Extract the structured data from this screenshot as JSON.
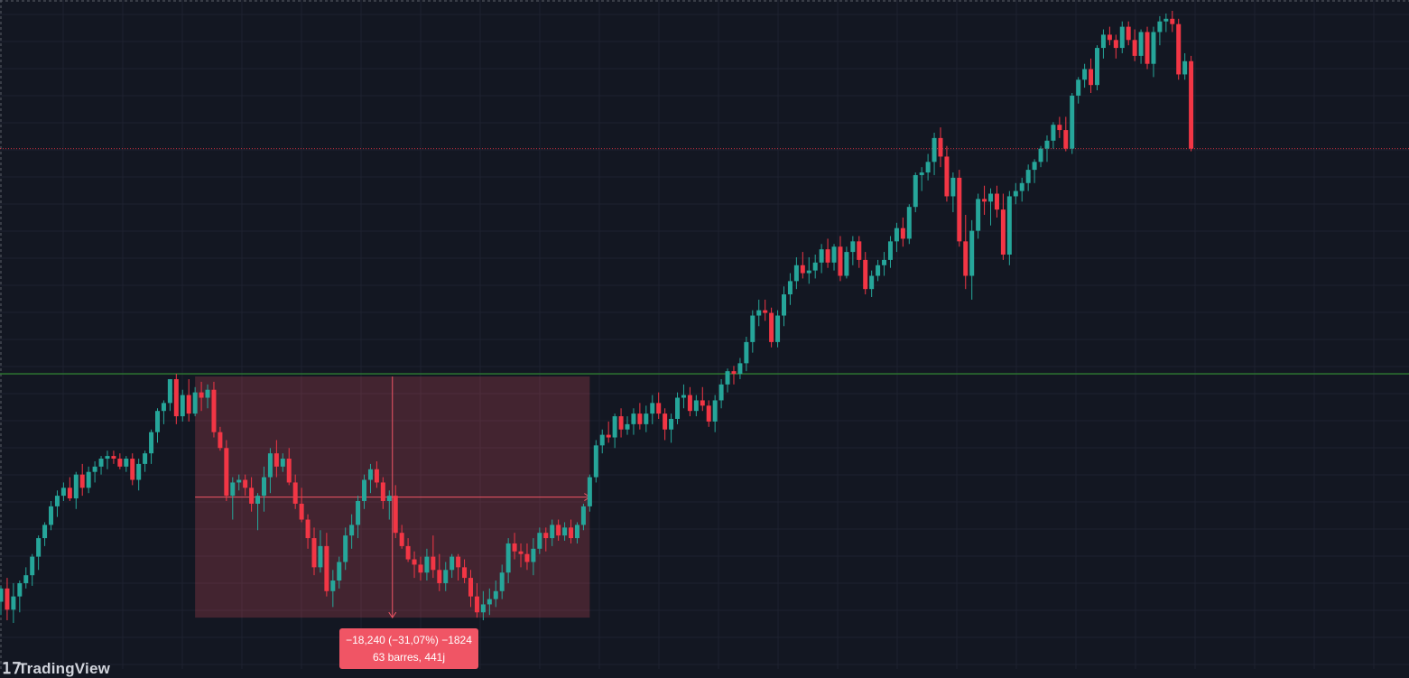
{
  "colors": {
    "background": "#131722",
    "grid": "#1e2230",
    "up_candle": "#26a69a",
    "down_candle": "#f23645",
    "measure_fill": "#f05565",
    "support_line": "#2e7d32",
    "price_line": "#f23645"
  },
  "measure_tool": {
    "line1": "−18,240 (−31,07%) −1824",
    "line2": "63 barres, 441j"
  },
  "watermark": {
    "text": "TradingView",
    "icon": "tradingview-logo-icon"
  },
  "chart_data": {
    "type": "candlestick",
    "ohlc": [
      [
        1.48,
        1.54,
        1.43,
        1.53
      ],
      [
        1.53,
        1.57,
        1.41,
        1.45
      ],
      [
        1.45,
        1.55,
        1.4,
        1.5
      ],
      [
        1.5,
        1.56,
        1.44,
        1.55
      ],
      [
        1.55,
        1.61,
        1.53,
        1.58
      ],
      [
        1.58,
        1.66,
        1.54,
        1.65
      ],
      [
        1.65,
        1.73,
        1.6,
        1.72
      ],
      [
        1.72,
        1.78,
        1.69,
        1.77
      ],
      [
        1.77,
        1.86,
        1.75,
        1.84
      ],
      [
        1.84,
        1.9,
        1.8,
        1.88
      ],
      [
        1.88,
        1.93,
        1.86,
        1.91
      ],
      [
        1.91,
        1.95,
        1.86,
        1.87
      ],
      [
        1.87,
        1.97,
        1.83,
        1.96
      ],
      [
        1.96,
        2.0,
        1.88,
        1.91
      ],
      [
        1.91,
        1.99,
        1.89,
        1.97
      ],
      [
        1.97,
        2.01,
        1.93,
        1.99
      ],
      [
        1.99,
        2.03,
        1.96,
        2.02
      ],
      [
        2.02,
        2.05,
        1.98,
        2.03
      ],
      [
        2.03,
        2.05,
        2.0,
        2.02
      ],
      [
        2.02,
        2.04,
        1.98,
        1.99
      ],
      [
        1.99,
        2.03,
        1.97,
        2.02
      ],
      [
        2.02,
        2.04,
        1.92,
        1.94
      ],
      [
        1.94,
        2.02,
        1.9,
        2.0
      ],
      [
        2.0,
        2.05,
        1.97,
        2.04
      ],
      [
        2.04,
        2.13,
        2.0,
        2.12
      ],
      [
        2.12,
        2.21,
        2.08,
        2.2
      ],
      [
        2.2,
        2.24,
        2.15,
        2.23
      ],
      [
        2.23,
        2.32,
        2.2,
        2.32
      ],
      [
        2.32,
        2.34,
        2.15,
        2.18
      ],
      [
        2.18,
        2.28,
        2.16,
        2.26
      ],
      [
        2.26,
        2.32,
        2.16,
        2.19
      ],
      [
        2.19,
        2.29,
        2.18,
        2.27
      ],
      [
        2.27,
        2.31,
        2.2,
        2.25
      ],
      [
        2.25,
        2.3,
        2.21,
        2.28
      ],
      [
        2.28,
        2.31,
        2.1,
        2.12
      ],
      [
        2.12,
        2.14,
        2.05,
        2.06
      ],
      [
        2.06,
        2.09,
        1.86,
        1.88
      ],
      [
        1.88,
        1.95,
        1.79,
        1.93
      ],
      [
        1.93,
        1.96,
        1.9,
        1.94
      ],
      [
        1.94,
        1.96,
        1.88,
        1.91
      ],
      [
        1.91,
        1.95,
        1.82,
        1.85
      ],
      [
        1.85,
        1.89,
        1.75,
        1.88
      ],
      [
        1.88,
        1.99,
        1.82,
        1.95
      ],
      [
        1.95,
        2.06,
        1.89,
        2.04
      ],
      [
        2.04,
        2.09,
        1.95,
        1.99
      ],
      [
        1.99,
        2.04,
        1.97,
        2.02
      ],
      [
        2.02,
        2.06,
        1.92,
        1.93
      ],
      [
        1.93,
        1.96,
        1.83,
        1.85
      ],
      [
        1.85,
        1.91,
        1.78,
        1.79
      ],
      [
        1.79,
        1.81,
        1.68,
        1.72
      ],
      [
        1.72,
        1.76,
        1.58,
        1.61
      ],
      [
        1.61,
        1.75,
        1.59,
        1.69
      ],
      [
        1.69,
        1.74,
        1.5,
        1.52
      ],
      [
        1.52,
        1.6,
        1.46,
        1.56
      ],
      [
        1.56,
        1.65,
        1.53,
        1.63
      ],
      [
        1.63,
        1.76,
        1.6,
        1.73
      ],
      [
        1.73,
        1.81,
        1.68,
        1.77
      ],
      [
        1.77,
        1.88,
        1.72,
        1.86
      ],
      [
        1.86,
        1.96,
        1.83,
        1.94
      ],
      [
        1.94,
        2.0,
        1.89,
        1.98
      ],
      [
        1.98,
        2.01,
        1.91,
        1.93
      ],
      [
        1.93,
        1.95,
        1.83,
        1.86
      ],
      [
        1.86,
        1.9,
        1.79,
        1.88
      ],
      [
        1.88,
        1.92,
        1.72,
        1.74
      ],
      [
        1.74,
        1.77,
        1.68,
        1.69
      ],
      [
        1.69,
        1.72,
        1.63,
        1.64
      ],
      [
        1.64,
        1.67,
        1.57,
        1.62
      ],
      [
        1.62,
        1.65,
        1.56,
        1.59
      ],
      [
        1.59,
        1.68,
        1.56,
        1.65
      ],
      [
        1.65,
        1.73,
        1.57,
        1.6
      ],
      [
        1.6,
        1.66,
        1.52,
        1.55
      ],
      [
        1.55,
        1.63,
        1.52,
        1.6
      ],
      [
        1.6,
        1.66,
        1.57,
        1.65
      ],
      [
        1.65,
        1.66,
        1.56,
        1.61
      ],
      [
        1.61,
        1.64,
        1.55,
        1.57
      ],
      [
        1.57,
        1.6,
        1.46,
        1.5
      ],
      [
        1.5,
        1.55,
        1.42,
        1.44
      ],
      [
        1.44,
        1.52,
        1.41,
        1.47
      ],
      [
        1.47,
        1.53,
        1.43,
        1.49
      ],
      [
        1.49,
        1.56,
        1.46,
        1.52
      ],
      [
        1.52,
        1.62,
        1.49,
        1.59
      ],
      [
        1.59,
        1.72,
        1.55,
        1.7
      ],
      [
        1.7,
        1.74,
        1.64,
        1.67
      ],
      [
        1.67,
        1.7,
        1.61,
        1.66
      ],
      [
        1.66,
        1.7,
        1.6,
        1.63
      ],
      [
        1.63,
        1.72,
        1.58,
        1.68
      ],
      [
        1.68,
        1.76,
        1.66,
        1.74
      ],
      [
        1.74,
        1.76,
        1.67,
        1.72
      ],
      [
        1.72,
        1.79,
        1.69,
        1.77
      ],
      [
        1.77,
        1.79,
        1.71,
        1.73
      ],
      [
        1.73,
        1.78,
        1.71,
        1.76
      ],
      [
        1.76,
        1.79,
        1.7,
        1.72
      ],
      [
        1.72,
        1.78,
        1.7,
        1.77
      ],
      [
        1.77,
        1.85,
        1.75,
        1.84
      ],
      [
        1.84,
        1.96,
        1.82,
        1.95
      ],
      [
        1.95,
        2.09,
        1.93,
        2.07
      ],
      [
        2.07,
        2.13,
        2.04,
        2.11
      ],
      [
        2.11,
        2.16,
        2.08,
        2.1
      ],
      [
        2.1,
        2.19,
        2.06,
        2.18
      ],
      [
        2.18,
        2.21,
        2.1,
        2.13
      ],
      [
        2.13,
        2.18,
        2.11,
        2.15
      ],
      [
        2.15,
        2.21,
        2.11,
        2.19
      ],
      [
        2.19,
        2.23,
        2.13,
        2.15
      ],
      [
        2.15,
        2.22,
        2.12,
        2.19
      ],
      [
        2.19,
        2.26,
        2.15,
        2.23
      ],
      [
        2.23,
        2.27,
        2.17,
        2.19
      ],
      [
        2.19,
        2.21,
        2.09,
        2.13
      ],
      [
        2.13,
        2.19,
        2.08,
        2.17
      ],
      [
        2.17,
        2.27,
        2.15,
        2.25
      ],
      [
        2.25,
        2.3,
        2.21,
        2.26
      ],
      [
        2.26,
        2.29,
        2.18,
        2.2
      ],
      [
        2.2,
        2.26,
        2.18,
        2.24
      ],
      [
        2.24,
        2.29,
        2.2,
        2.22
      ],
      [
        2.22,
        2.24,
        2.14,
        2.16
      ],
      [
        2.16,
        2.26,
        2.12,
        2.24
      ],
      [
        2.24,
        2.32,
        2.21,
        2.3
      ],
      [
        2.3,
        2.36,
        2.27,
        2.35
      ],
      [
        2.35,
        2.37,
        2.3,
        2.34
      ],
      [
        2.34,
        2.4,
        2.32,
        2.38
      ],
      [
        2.38,
        2.48,
        2.35,
        2.46
      ],
      [
        2.46,
        2.58,
        2.42,
        2.56
      ],
      [
        2.56,
        2.62,
        2.52,
        2.58
      ],
      [
        2.58,
        2.62,
        2.54,
        2.57
      ],
      [
        2.57,
        2.59,
        2.44,
        2.46
      ],
      [
        2.46,
        2.58,
        2.44,
        2.56
      ],
      [
        2.56,
        2.67,
        2.52,
        2.64
      ],
      [
        2.64,
        2.72,
        2.6,
        2.69
      ],
      [
        2.69,
        2.78,
        2.66,
        2.75
      ],
      [
        2.75,
        2.8,
        2.7,
        2.72
      ],
      [
        2.72,
        2.78,
        2.68,
        2.73
      ],
      [
        2.73,
        2.79,
        2.7,
        2.76
      ],
      [
        2.76,
        2.83,
        2.72,
        2.81
      ],
      [
        2.81,
        2.85,
        2.74,
        2.76
      ],
      [
        2.76,
        2.83,
        2.73,
        2.82
      ],
      [
        2.82,
        2.86,
        2.69,
        2.71
      ],
      [
        2.71,
        2.82,
        2.7,
        2.8
      ],
      [
        2.8,
        2.86,
        2.75,
        2.84
      ],
      [
        2.84,
        2.86,
        2.74,
        2.77
      ],
      [
        2.77,
        2.8,
        2.64,
        2.66
      ],
      [
        2.66,
        2.73,
        2.63,
        2.71
      ],
      [
        2.71,
        2.77,
        2.69,
        2.75
      ],
      [
        2.75,
        2.8,
        2.71,
        2.77
      ],
      [
        2.77,
        2.86,
        2.74,
        2.84
      ],
      [
        2.84,
        2.91,
        2.8,
        2.89
      ],
      [
        2.89,
        2.93,
        2.82,
        2.85
      ],
      [
        2.85,
        2.98,
        2.83,
        2.97
      ],
      [
        2.97,
        3.1,
        2.95,
        3.09
      ],
      [
        3.09,
        3.12,
        3.03,
        3.1
      ],
      [
        3.1,
        3.17,
        3.07,
        3.14
      ],
      [
        3.14,
        3.25,
        3.09,
        3.23
      ],
      [
        3.23,
        3.27,
        3.12,
        3.16
      ],
      [
        3.16,
        3.2,
        2.99,
        3.01
      ],
      [
        3.01,
        3.1,
        2.95,
        3.08
      ],
      [
        3.08,
        3.11,
        2.82,
        2.84
      ],
      [
        2.84,
        2.94,
        2.66,
        2.71
      ],
      [
        2.71,
        2.92,
        2.62,
        2.88
      ],
      [
        2.88,
        3.02,
        2.85,
        3.0
      ],
      [
        3.0,
        3.05,
        2.94,
        2.99
      ],
      [
        2.99,
        3.04,
        2.9,
        3.02
      ],
      [
        3.02,
        3.05,
        2.93,
        2.96
      ],
      [
        2.96,
        3.02,
        2.77,
        2.79
      ],
      [
        2.79,
        3.03,
        2.75,
        3.01
      ],
      [
        3.01,
        3.06,
        2.98,
        3.03
      ],
      [
        3.03,
        3.08,
        2.99,
        3.06
      ],
      [
        3.06,
        3.13,
        3.03,
        3.11
      ],
      [
        3.11,
        3.15,
        3.06,
        3.14
      ],
      [
        3.14,
        3.2,
        3.12,
        3.19
      ],
      [
        3.19,
        3.24,
        3.14,
        3.22
      ],
      [
        3.22,
        3.29,
        3.19,
        3.28
      ],
      [
        3.28,
        3.31,
        3.23,
        3.26
      ],
      [
        3.26,
        3.31,
        3.18,
        3.19
      ],
      [
        3.19,
        3.4,
        3.17,
        3.39
      ],
      [
        3.39,
        3.46,
        3.36,
        3.45
      ],
      [
        3.45,
        3.51,
        3.42,
        3.49
      ],
      [
        3.49,
        3.53,
        3.4,
        3.43
      ],
      [
        3.43,
        3.58,
        3.41,
        3.57
      ],
      [
        3.57,
        3.64,
        3.53,
        3.62
      ],
      [
        3.62,
        3.65,
        3.58,
        3.6
      ],
      [
        3.6,
        3.62,
        3.53,
        3.57
      ],
      [
        3.57,
        3.67,
        3.55,
        3.65
      ],
      [
        3.65,
        3.67,
        3.58,
        3.6
      ],
      [
        3.6,
        3.64,
        3.52,
        3.54
      ],
      [
        3.54,
        3.64,
        3.51,
        3.63
      ],
      [
        3.63,
        3.65,
        3.49,
        3.51
      ],
      [
        3.51,
        3.65,
        3.46,
        3.63
      ],
      [
        3.63,
        3.69,
        3.58,
        3.67
      ],
      [
        3.67,
        3.7,
        3.63,
        3.68
      ],
      [
        3.68,
        3.71,
        3.63,
        3.66
      ],
      [
        3.66,
        3.68,
        3.45,
        3.47
      ],
      [
        3.47,
        3.55,
        3.45,
        3.52
      ],
      [
        3.52,
        3.54,
        3.18,
        3.19
      ]
    ],
    "support_level": 2.34,
    "current_price_level": 3.19,
    "y_range": [
      1.4,
      3.71
    ],
    "measure_range": {
      "start_bar": 31,
      "end_bar": 94,
      "high": 2.33,
      "low": 1.42
    },
    "grid": true
  }
}
